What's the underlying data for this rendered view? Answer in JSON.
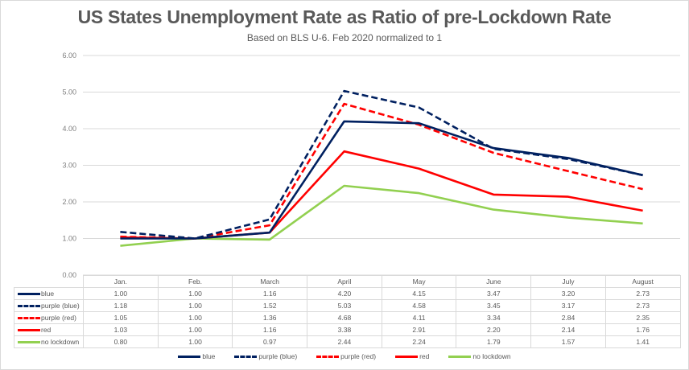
{
  "chart_data": {
    "type": "line",
    "title": "US States Unemployment Rate as Ratio of pre-Lockdown Rate",
    "subtitle": "Based on BLS U-6.   Feb 2020 normalized to 1",
    "xlabel": "",
    "ylabel": "",
    "ylim": [
      0,
      6
    ],
    "yticks": [
      "0.00",
      "1.00",
      "2.00",
      "3.00",
      "4.00",
      "5.00",
      "6.00"
    ],
    "grid": true,
    "legend_position": "bottom",
    "categories": [
      "Jan.",
      "Feb.",
      "March",
      "April",
      "May",
      "June",
      "July",
      "August"
    ],
    "series": [
      {
        "name": "blue",
        "color": "#002060",
        "dash": "solid",
        "values": [
          1.0,
          1.0,
          1.16,
          4.2,
          4.15,
          3.47,
          3.2,
          2.73
        ],
        "labels": [
          "1.00",
          "1.00",
          "1.16",
          "4.20",
          "4.15",
          "3.47",
          "3.20",
          "2.73"
        ]
      },
      {
        "name": "purple (blue)",
        "color": "#002060",
        "dash": "dashed",
        "values": [
          1.18,
          1.0,
          1.52,
          5.03,
          4.58,
          3.45,
          3.17,
          2.73
        ],
        "labels": [
          "1.18",
          "1.00",
          "1.52",
          "5.03",
          "4.58",
          "3.45",
          "3.17",
          "2.73"
        ]
      },
      {
        "name": "purple (red)",
        "color": "#ff0000",
        "dash": "dashed",
        "values": [
          1.05,
          1.0,
          1.36,
          4.68,
          4.11,
          3.34,
          2.84,
          2.35
        ],
        "labels": [
          "1.05",
          "1.00",
          "1.36",
          "4.68",
          "4.11",
          "3.34",
          "2.84",
          "2.35"
        ]
      },
      {
        "name": "red",
        "color": "#ff0000",
        "dash": "solid",
        "values": [
          1.03,
          1.0,
          1.16,
          3.38,
          2.91,
          2.2,
          2.14,
          1.76
        ],
        "labels": [
          "1.03",
          "1.00",
          "1.16",
          "3.38",
          "2.91",
          "2.20",
          "2.14",
          "1.76"
        ]
      },
      {
        "name": "no lockdown",
        "color": "#92d050",
        "dash": "solid",
        "values": [
          0.8,
          1.0,
          0.97,
          2.44,
          2.24,
          1.79,
          1.57,
          1.41
        ],
        "labels": [
          "0.80",
          "1.00",
          "0.97",
          "2.44",
          "2.24",
          "1.79",
          "1.57",
          "1.41"
        ]
      }
    ],
    "data_table": true
  }
}
